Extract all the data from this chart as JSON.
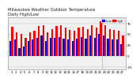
{
  "title": "Milwaukee Weather Outdoor Temperature",
  "subtitle": "Daily High/Low",
  "bar_width": 0.4,
  "high_color": "#ff0000",
  "low_color": "#0000ff",
  "background_color": "#ffffff",
  "plot_bg": "#f0f0f0",
  "ylim": [
    -30,
    90
  ],
  "ytick_values": [
    -25,
    0,
    25,
    50,
    75
  ],
  "ytick_labels": [
    "-25",
    "0",
    "25",
    "50",
    "75"
  ],
  "legend_high": "High",
  "legend_low": "Low",
  "dates": [
    "2",
    "3",
    "4",
    "5",
    "6",
    "7",
    "8",
    "9",
    "10",
    "11",
    "12",
    "13",
    "14",
    "15",
    "16",
    "17",
    "18",
    "19",
    "20",
    "21",
    "22",
    "23",
    "24",
    "25",
    "26",
    "27"
  ],
  "highs": [
    68,
    55,
    52,
    42,
    55,
    58,
    70,
    72,
    55,
    62,
    70,
    72,
    65,
    60,
    58,
    65,
    68,
    62,
    72,
    65,
    80,
    72,
    62,
    60,
    58,
    48
  ],
  "lows": [
    35,
    38,
    18,
    22,
    35,
    38,
    42,
    48,
    35,
    42,
    42,
    45,
    40,
    38,
    35,
    40,
    45,
    40,
    48,
    42,
    52,
    48,
    40,
    38,
    38,
    28
  ],
  "dotted_line_index": 20.5,
  "title_fontsize": 3.8,
  "tick_fontsize": 2.8,
  "legend_fontsize": 3.0,
  "ylabel_right": true
}
